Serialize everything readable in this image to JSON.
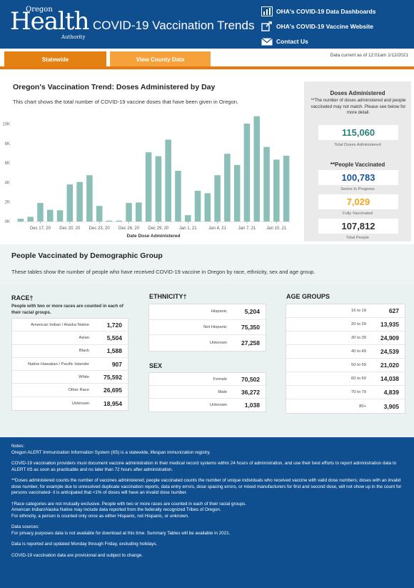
{
  "header": {
    "logo_top": "Oregon",
    "logo_main": "Health",
    "logo_bottom": "Authority",
    "title": "COVID-19 Vaccination Trends",
    "links": [
      {
        "label": "OHA's COVID-19 Data Dashboards",
        "icon": "chart-icon"
      },
      {
        "label": "OHA's COVID-19 Vaccine Website",
        "icon": "external-link-icon"
      },
      {
        "label": "Contact Us",
        "icon": "mail-icon"
      }
    ]
  },
  "tabs": {
    "statewide": "Statewide",
    "county": "View County Data"
  },
  "data_current": "Data current as of 12:01am 1/12/2021",
  "trend": {
    "title": "Oregon's Vaccination Trend: Doses Administered by Day",
    "description": "This chart shows the total number of COVID-19 vaccine doses that have been given in Oregon."
  },
  "chart_data": {
    "type": "bar",
    "xlabel": "Date Dose Administered",
    "ylabel": "",
    "ylim": [
      0,
      11000
    ],
    "yticks": [
      0,
      2000,
      4000,
      6000,
      8000,
      10000
    ],
    "ytick_labels": [
      "0K",
      "2K",
      "4K",
      "6K",
      "8K",
      "10K"
    ],
    "color": "#8bbfb7",
    "categories": [
      "Dec 15",
      "Dec 16",
      "Dec 17",
      "Dec 18",
      "Dec 19",
      "Dec 20",
      "Dec 21",
      "Dec 22",
      "Dec 23",
      "Dec 24",
      "Dec 25",
      "Dec 26",
      "Dec 27",
      "Dec 28",
      "Dec 29",
      "Dec 30",
      "Dec 31",
      "Jan 1",
      "Jan 2",
      "Jan 3",
      "Jan 4",
      "Jan 5",
      "Jan 6",
      "Jan 7",
      "Jan 8",
      "Jan 9",
      "Jan 10",
      "Jan 11"
    ],
    "values": [
      280,
      480,
      1900,
      1200,
      1150,
      3800,
      4050,
      4750,
      1600,
      90,
      90,
      1900,
      1950,
      7100,
      6700,
      8400,
      5200,
      650,
      3150,
      2900,
      4750,
      6950,
      5800,
      10050,
      10800,
      7650,
      6350,
      6750
    ],
    "xtick_labels": [
      {
        "index": 2,
        "label": "Dec 17, 20"
      },
      {
        "index": 5,
        "label": "Dec 20, 20"
      },
      {
        "index": 8,
        "label": "Dec 23, 20"
      },
      {
        "index": 11,
        "label": "Dec 26, 20"
      },
      {
        "index": 14,
        "label": "Dec 29, 20"
      },
      {
        "index": 17,
        "label": "Jan 1, 21"
      },
      {
        "index": 20,
        "label": "Jan 4, 21"
      },
      {
        "index": 23,
        "label": "Jan 7, 21"
      },
      {
        "index": 26,
        "label": "Jan 10, 21"
      }
    ]
  },
  "doses_panel": {
    "title": "Doses Administered",
    "note": "**The number of doses administered and people vaccinated may not match. Please see below for more detail.",
    "total_doses": "115,060",
    "total_doses_label": "Total Doses Administered",
    "people_title": "**People Vaccinated",
    "in_progress": "100,783",
    "in_progress_label": "Series In Progress",
    "fully": "7,029",
    "fully_label": "Fully Vaccinated",
    "total_people": "107,812",
    "total_people_label": "Total People",
    "colors": {
      "blue": "#1a5594",
      "orange": "#f5a623",
      "dark": "#333333"
    }
  },
  "demographics": {
    "title": "People Vaccinated by Demographic Group",
    "description": "These tables show the number of people who have received COVID-19 vaccine in Oregon by race, ethnicity, sex and age group.",
    "race": {
      "title": "RACE†",
      "subtitle": "People with two or more races are counted in each of their racial groups.",
      "rows": [
        {
          "label": "American Indian / Alaska Native",
          "value": "1,720"
        },
        {
          "label": "Asian",
          "value": "5,504"
        },
        {
          "label": "Black",
          "value": "1,588"
        },
        {
          "label": "Native Hawaiian / Pacific Islander",
          "value": "907"
        },
        {
          "label": "White",
          "value": "75,592"
        },
        {
          "label": "Other Race",
          "value": "26,695"
        },
        {
          "label": "Unknown",
          "value": "18,954"
        }
      ]
    },
    "ethnicity": {
      "title": "ETHNICITY†",
      "rows": [
        {
          "label": "Hispanic",
          "value": "5,204"
        },
        {
          "label": "Not Hispanic",
          "value": "75,350"
        },
        {
          "label": "Unknown",
          "value": "27,258"
        }
      ]
    },
    "sex": {
      "title": "SEX",
      "rows": [
        {
          "label": "Female",
          "value": "70,502"
        },
        {
          "label": "Male",
          "value": "36,272"
        },
        {
          "label": "Unknown",
          "value": "1,038"
        }
      ]
    },
    "age": {
      "title": "AGE GROUPS",
      "rows": [
        {
          "label": "16 to 19",
          "value": "627"
        },
        {
          "label": "20 to 29",
          "value": "13,935"
        },
        {
          "label": "30 to 39",
          "value": "24,909"
        },
        {
          "label": "40 to 49",
          "value": "24,539"
        },
        {
          "label": "50 to 59",
          "value": "21,020"
        },
        {
          "label": "60 to 69",
          "value": "14,038"
        },
        {
          "label": "70 to 79",
          "value": "4,839"
        },
        {
          "label": "80+",
          "value": "3,905"
        }
      ]
    }
  },
  "notes": [
    "Notes:\nOregon ALERT Immunization Information System (IIS) is a statewide, lifespan immunization registry.",
    "COVID-19 vaccination providers must document vaccine administration in their medical record systems within 24 hours of administration, and use their best efforts to report administration data to ALERT IIS as soon as practicable and no later than 72 hours after administration.",
    "**Doses administered counts the number of vaccines administered; people vaccinated counts the number of unique individuals who received vaccine with valid dose numbers; doses with an invalid dose number, for example due to unresolved duplicate vaccination reports, data entry errors, dose spacing errors, or mixed manufacturers for first and second dose, will not show up in the count for persons vaccinated- it is anticipated that <1% of doses will have an invalid dose number.",
    "†Race categories are not mutually exclusive. People with two or more races are counted in each of their racial groups.\nAmerican Indian/Alaska Native may include data reported from the federally recognized Tribes of Oregon.\nFor ethnicity, a person is counted only once as either Hispanic, not Hispanic, or unknown.",
    "Data sources:\nFor privacy purposes data is not available for download at this time. Summary Tables will be available in 2021.",
    "Data is reported and updated Monday through Friday, excluding holidays.",
    "COVID-19 vaccination data are provisional and subject to change."
  ]
}
